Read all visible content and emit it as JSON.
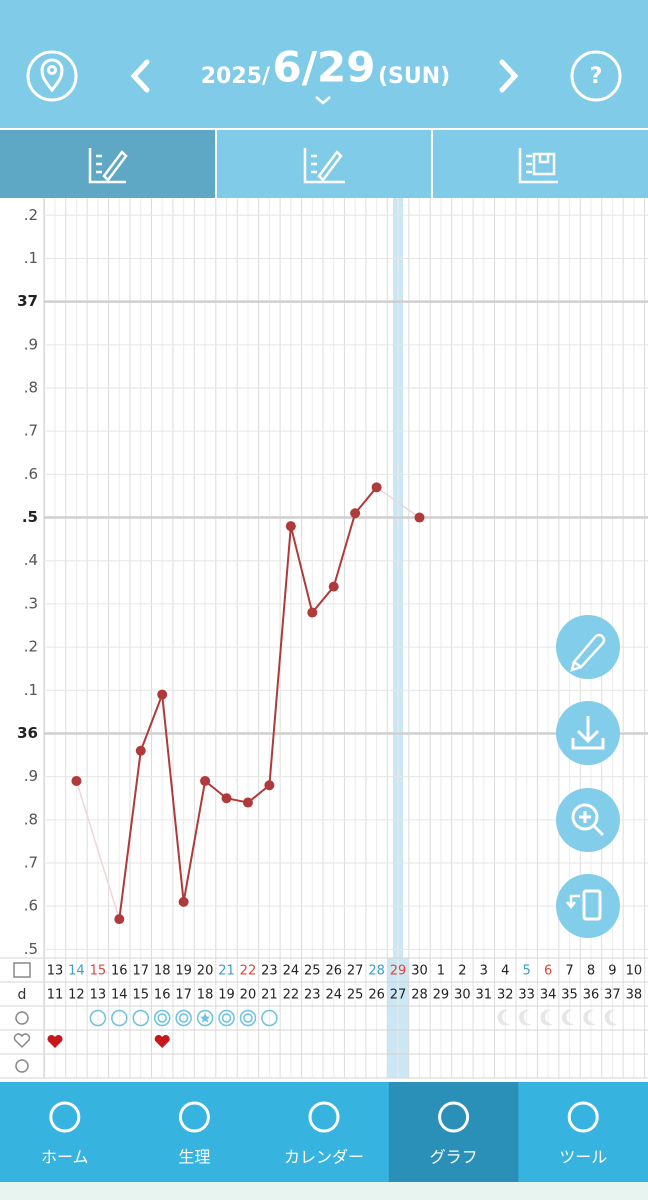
{
  "header": {
    "year": "2025/",
    "date": "6/29",
    "weekday": "(SUN)"
  },
  "chart_data": {
    "type": "line",
    "categories": [
      "13",
      "14",
      "15",
      "16",
      "17",
      "18",
      "19",
      "20",
      "21",
      "22",
      "23",
      "24",
      "25",
      "26",
      "27",
      "28",
      "29",
      "30",
      "1",
      "2",
      "3",
      "4",
      "5",
      "6",
      "7",
      "8",
      "9",
      "10"
    ],
    "date_colors": [
      null,
      "#3a9ec8",
      "#d9463c",
      null,
      null,
      null,
      null,
      null,
      "#3a9ec8",
      "#d9463c",
      null,
      null,
      null,
      null,
      null,
      "#3a9ec8",
      "#d9463c",
      null,
      null,
      null,
      null,
      null,
      "#3a9ec8",
      "#d9463c",
      null,
      null,
      null,
      null
    ],
    "cycle_label": "d",
    "cycle_days": [
      11,
      12,
      13,
      14,
      15,
      16,
      17,
      18,
      19,
      20,
      21,
      22,
      23,
      24,
      25,
      26,
      27,
      28,
      29,
      30,
      31,
      32,
      33,
      34,
      35,
      36,
      37,
      38
    ],
    "series": [
      {
        "color": "#b03a3a",
        "values": [
          null,
          35.89,
          null,
          35.57,
          35.96,
          36.09,
          35.61,
          35.89,
          35.85,
          35.84,
          35.88,
          36.48,
          36.28,
          36.34,
          36.51,
          36.57,
          null,
          36.5,
          null,
          null,
          null,
          null,
          null,
          null,
          null,
          null,
          null,
          null
        ]
      }
    ],
    "ylim": [
      35.48,
      37.24
    ],
    "yticks": [
      {
        "value": 37.2,
        "label": ".2"
      },
      {
        "value": 37.1,
        "label": ".1"
      },
      37,
      {
        "value": 36.9,
        "label": ".9"
      },
      {
        "value": 36.8,
        "label": ".8"
      },
      {
        "value": 36.7,
        "label": ".7"
      },
      {
        "value": 36.6,
        "label": ".6"
      },
      {
        "value": 36.5,
        "label": ".5"
      },
      {
        "value": 36.4,
        "label": ".4"
      },
      {
        "value": 36.3,
        "label": ".3"
      },
      {
        "value": 36.2,
        "label": ".2"
      },
      {
        "value": 36.1,
        "label": ".1"
      },
      36,
      {
        "value": 35.9,
        "label": ".9"
      },
      {
        "value": 35.8,
        "label": ".8"
      },
      {
        "value": 35.7,
        "label": ".7"
      },
      {
        "value": 35.6,
        "label": ".6"
      },
      {
        "value": 35.5,
        "label": ".5"
      }
    ],
    "major_ticks": [
      37,
      36.5,
      36
    ],
    "highlight_index": 16
  },
  "nav": {
    "items": [
      "ホーム",
      "生理",
      "カレンダー",
      "グラフ",
      "ツール"
    ],
    "active": 3
  }
}
